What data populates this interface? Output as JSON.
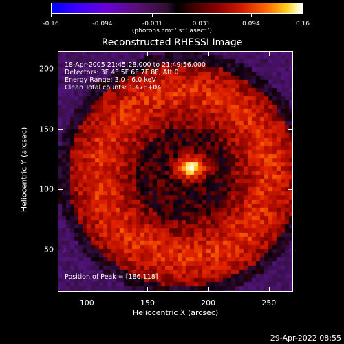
{
  "colorbar": {
    "ticks": [
      "-0.16",
      "-0.094",
      "-0.031",
      "0.031",
      "0.094",
      "0.16"
    ],
    "units": "(photons cm⁻² s⁻¹ asec⁻²)"
  },
  "title": "Reconstructed RHESSI Image",
  "info": {
    "time": "18-Apr-2005 21:45:28.000 to 21:49:56.000",
    "detectors": "Detectors: 3F 4F 5F 6F 7F 8F, Att 0",
    "energy": "Energy Range: 3.0 - 6.0 keV",
    "clean": "Clean     Total counts: 1.47E+04",
    "peak": "Position of Peak = [186,118]"
  },
  "timestamp": "29-Apr-2022 08:55",
  "chart_data": {
    "type": "heatmap",
    "title": "Reconstructed RHESSI Image",
    "xlabel": "Heliocentric X (arcsec)",
    "ylabel": "Heliocentric Y (arcsec)",
    "xlim": [
      76,
      270
    ],
    "ylim": [
      15,
      215
    ],
    "xticks": [
      "100",
      "150",
      "200",
      "250"
    ],
    "yticks": [
      "50",
      "100",
      "150",
      "200"
    ],
    "colorbar_range": [
      -0.16,
      0.16
    ],
    "peak_position": [
      186,
      118
    ],
    "emission_ring_center": [
      180,
      112
    ],
    "colormap": [
      "#0000ff",
      "#6a00d8",
      "#000000",
      "#8a0000",
      "#ff6a00",
      "#ffffff"
    ]
  }
}
